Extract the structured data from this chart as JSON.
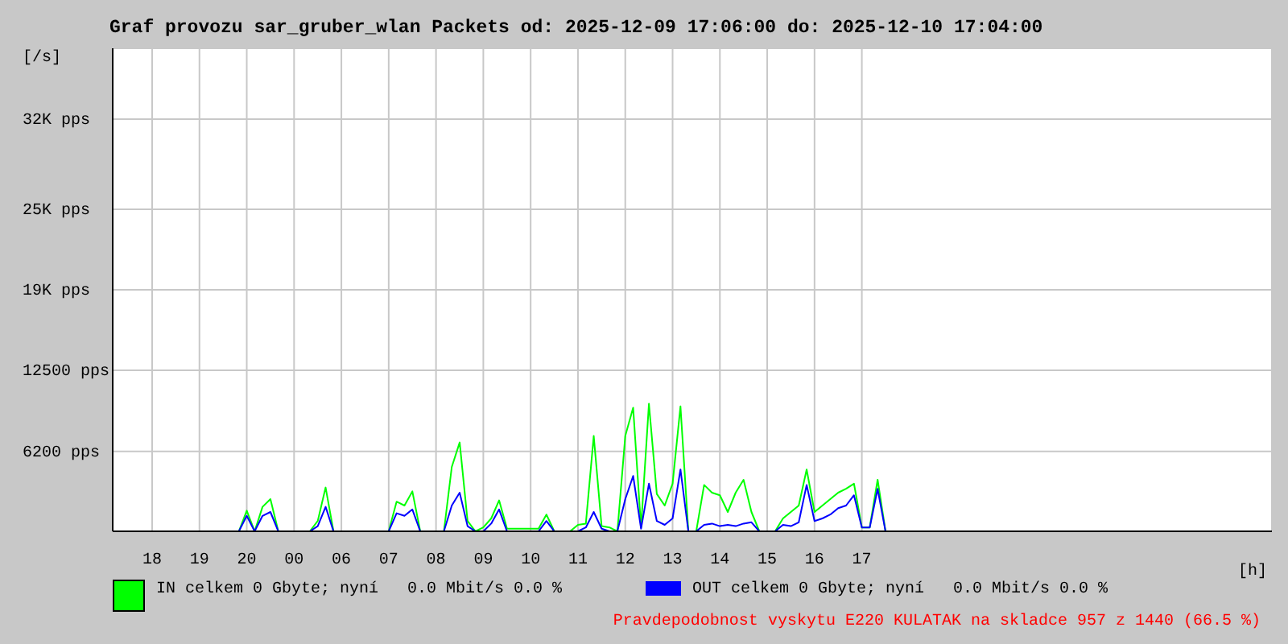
{
  "chart_data": {
    "type": "line",
    "title": "Graf provozu sar_gruber_wlan Packets od: 2025-12-09 17:06:00 do: 2025-12-10 17:04:00",
    "xlabel": "[h]",
    "ylabel": "[/s]",
    "annotations": [
      "Pravdepodobnost vyskytu E220 KULATAK na skladce 957 z 1440 (66.5 %)"
    ],
    "categories": [
      null,
      null,
      null,
      null,
      null,
      "18",
      null,
      null,
      null,
      null,
      null,
      "19",
      null,
      null,
      null,
      null,
      null,
      "20",
      null,
      null,
      null,
      null,
      null,
      "00",
      null,
      null,
      null,
      null,
      null,
      "06",
      null,
      null,
      null,
      null,
      null,
      "07",
      null,
      null,
      null,
      null,
      null,
      "08",
      null,
      null,
      null,
      null,
      null,
      "09",
      null,
      null,
      null,
      null,
      null,
      "10",
      null,
      null,
      null,
      null,
      null,
      "11",
      null,
      null,
      null,
      null,
      null,
      "12",
      null,
      null,
      null,
      null,
      null,
      "13",
      null,
      null,
      null,
      null,
      null,
      "14",
      null,
      null,
      null,
      null,
      null,
      "15",
      null,
      null,
      null,
      null,
      null,
      "16",
      null,
      null,
      null,
      null,
      null,
      "17",
      null,
      null,
      null,
      null,
      null,
      null,
      null,
      null,
      null,
      null,
      null,
      null,
      null,
      null,
      null,
      null,
      null,
      null,
      null,
      null,
      null,
      null,
      null,
      null,
      null,
      null,
      null,
      null,
      null,
      null,
      null,
      null,
      null,
      null,
      null,
      null,
      null,
      null,
      null,
      null,
      null,
      null,
      null,
      null,
      null,
      null,
      null,
      null,
      null,
      null,
      null,
      null
    ],
    "ylim": [
      0,
      37500
    ],
    "yticks": [
      {
        "value": 6200,
        "label": "6200 pps"
      },
      {
        "value": 12500,
        "label": "12500 pps"
      },
      {
        "value": 18750,
        "label": "19K pps"
      },
      {
        "value": 25000,
        "label": "25K pps"
      },
      {
        "value": 32000,
        "label": "32K pps"
      }
    ],
    "grid": true,
    "legend": "bottom",
    "series": [
      {
        "name": "IN celkem 0 Gbyte; nyní   0.0 Mbit/s 0.0 %",
        "color": "#00ff00",
        "values": [
          null,
          null,
          null,
          null,
          null,
          null,
          null,
          null,
          null,
          null,
          null,
          null,
          null,
          null,
          null,
          null,
          0,
          1600,
          0,
          1900,
          2500,
          0,
          0,
          0,
          0,
          0,
          800,
          3400,
          0,
          0,
          0,
          0,
          0,
          0,
          0,
          0,
          2300,
          2000,
          3100,
          0,
          0,
          0,
          0,
          5000,
          6900,
          800,
          0,
          300,
          1000,
          2400,
          200,
          200,
          200,
          200,
          200,
          1300,
          0,
          0,
          0,
          500,
          600,
          7400,
          400,
          300,
          0,
          7400,
          9600,
          300,
          9900,
          2900,
          2000,
          3700,
          9700,
          0,
          0,
          3600,
          3000,
          2800,
          1500,
          3000,
          4000,
          1500,
          0,
          0,
          0,
          1000,
          1500,
          2000,
          4800,
          1500,
          2000,
          2500,
          3000,
          3300,
          3700,
          300,
          300,
          4000,
          0,
          null,
          null,
          null,
          null,
          null,
          null,
          null,
          null,
          null,
          null,
          null,
          null,
          null,
          null,
          null,
          null,
          null,
          null,
          null,
          null,
          null,
          null,
          null,
          null,
          null,
          null,
          null,
          null,
          null,
          null,
          null,
          null,
          null,
          null,
          null,
          null,
          null,
          null,
          null,
          null,
          null,
          null,
          null,
          null,
          null,
          null,
          null,
          null,
          null
        ]
      },
      {
        "name": "OUT celkem 0 Gbyte; nyní   0.0 Mbit/s 0.0 %",
        "color": "#0000ff",
        "values": [
          null,
          null,
          null,
          null,
          null,
          null,
          null,
          null,
          null,
          null,
          null,
          null,
          null,
          null,
          null,
          null,
          0,
          1200,
          0,
          1200,
          1500,
          0,
          0,
          0,
          0,
          0,
          400,
          1900,
          0,
          0,
          0,
          0,
          0,
          0,
          0,
          0,
          1400,
          1200,
          1700,
          0,
          0,
          0,
          0,
          2000,
          3000,
          400,
          0,
          0,
          600,
          1700,
          0,
          0,
          0,
          0,
          0,
          800,
          0,
          0,
          0,
          0,
          300,
          1500,
          200,
          0,
          0,
          2500,
          4300,
          200,
          3700,
          800,
          500,
          1000,
          4800,
          0,
          0,
          500,
          600,
          400,
          500,
          400,
          600,
          700,
          0,
          0,
          0,
          500,
          400,
          700,
          3600,
          800,
          1000,
          1300,
          1800,
          2000,
          2800,
          300,
          300,
          3300,
          0,
          null,
          null,
          null,
          null,
          null,
          null,
          null,
          null,
          null,
          null,
          null,
          null,
          null,
          null,
          null,
          null,
          null,
          null,
          null,
          null,
          null,
          null,
          null,
          null,
          null,
          null,
          null,
          null,
          null,
          null,
          null,
          null,
          null,
          null,
          null,
          null,
          null,
          null,
          null,
          null,
          null,
          null,
          null,
          null,
          null,
          null,
          null,
          null,
          null
        ]
      }
    ]
  }
}
